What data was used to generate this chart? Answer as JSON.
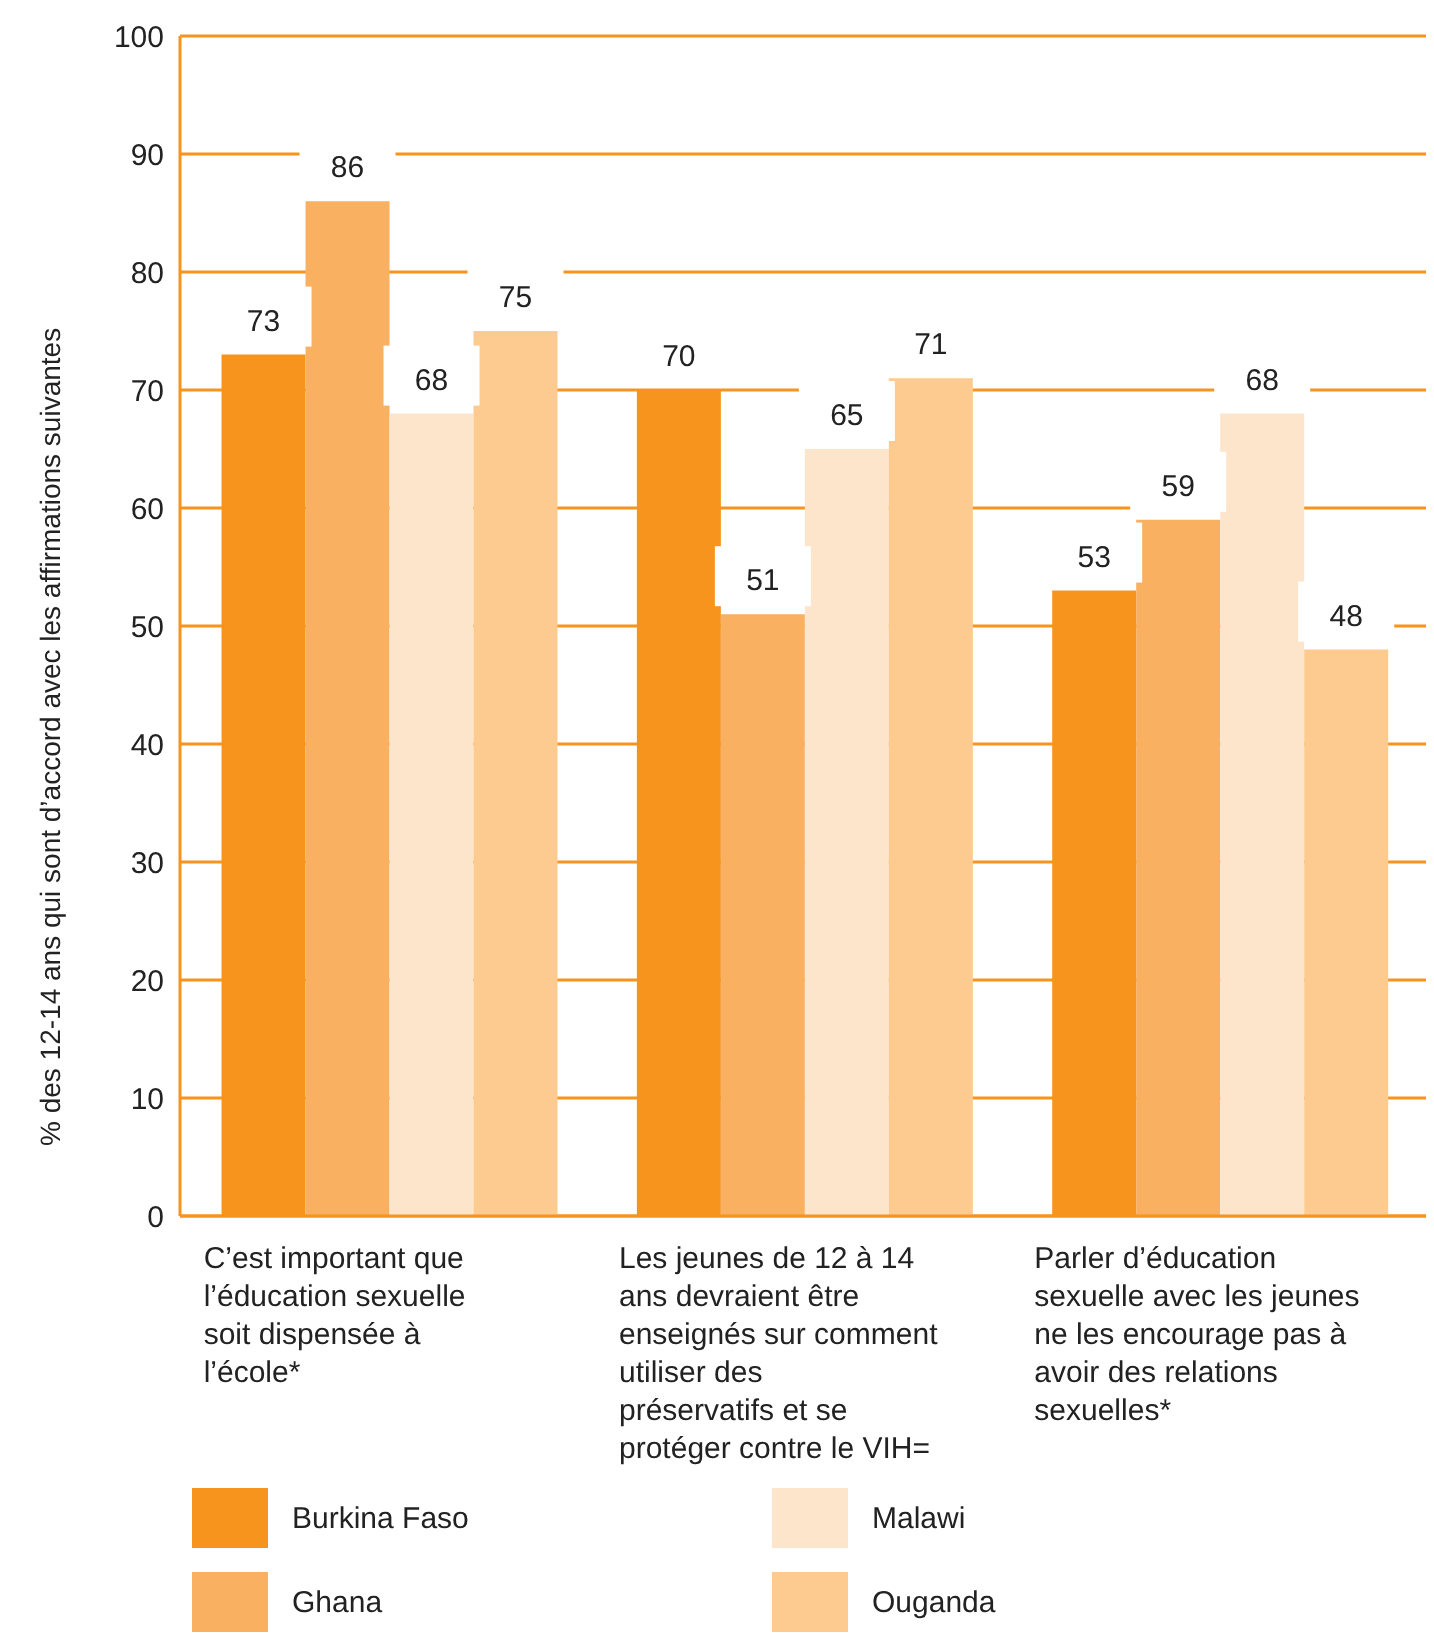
{
  "chart_data": {
    "type": "bar",
    "ylabel": "% des 12-14 ans qui sont d’accord avec les affirmations suivantes",
    "categories": [
      "C’est important que l’éducation sexuelle soit dispensée à l’école*",
      "Les jeunes de 12 à 14 ans devraient être enseignés sur comment utiliser des préservatifs et se protéger contre le VIH=",
      "Parler d’éducation sexuelle avec les jeunes ne les encourage pas à avoir des relations sexuelles*"
    ],
    "series": [
      {
        "name": "Burkina Faso",
        "color": "#f7941d",
        "values": [
          73,
          70,
          53
        ]
      },
      {
        "name": "Ghana",
        "color": "#f9b061",
        "values": [
          86,
          51,
          59
        ]
      },
      {
        "name": "Malawi",
        "color": "#fde5cb",
        "values": [
          68,
          65,
          68
        ]
      },
      {
        "name": "Ouganda",
        "color": "#fdcb8f",
        "values": [
          75,
          71,
          48
        ]
      }
    ],
    "ylim": [
      0,
      100
    ],
    "yticks": [
      0,
      10,
      20,
      30,
      40,
      50,
      60,
      70,
      80,
      90,
      100
    ],
    "grid": "y",
    "data_labels": true,
    "legend": "bottom"
  }
}
